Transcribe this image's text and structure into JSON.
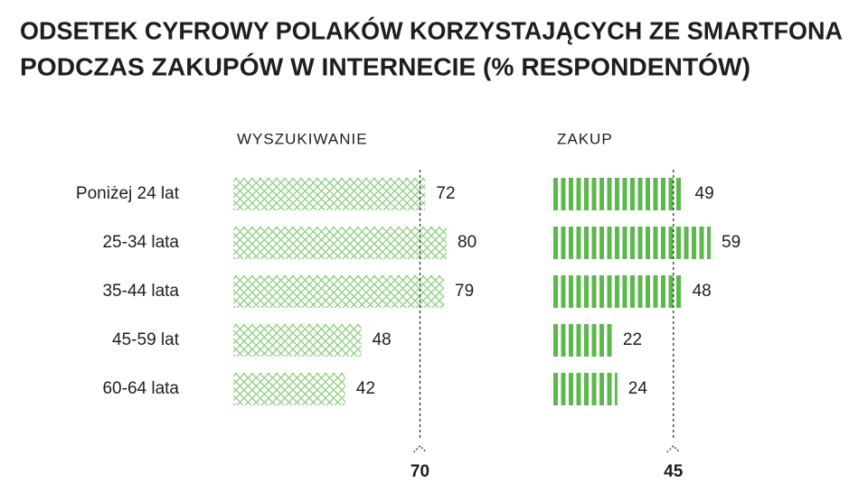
{
  "title": [
    "ODSETEK CYFROWY POLAKÓW KORZYSTAJĄCYCH ZE SMARTFONA",
    "PODCZAS ZAKUPÓW W INTERNECIE (% RESPONDENTÓW)"
  ],
  "chart_data": [
    {
      "type": "bar",
      "orientation": "horizontal",
      "title": "WYSZUKIWANIE",
      "categories": [
        "Poniżej 24 lat",
        "25-34 lata",
        "35-44 lata",
        "45-59 lat",
        "60-64 lata"
      ],
      "values": [
        72,
        80,
        79,
        48,
        42
      ],
      "color": "#8ccf7e",
      "pattern": "crosshatch",
      "xlim": [
        0,
        100
      ],
      "reference_line": 70
    },
    {
      "type": "bar",
      "orientation": "horizontal",
      "title": "ZAKUP",
      "values": [
        49,
        59,
        48,
        22,
        24
      ],
      "color": "#5ab94a",
      "pattern": "stripes",
      "xlim": [
        0,
        100
      ],
      "reference_line": 45
    }
  ]
}
